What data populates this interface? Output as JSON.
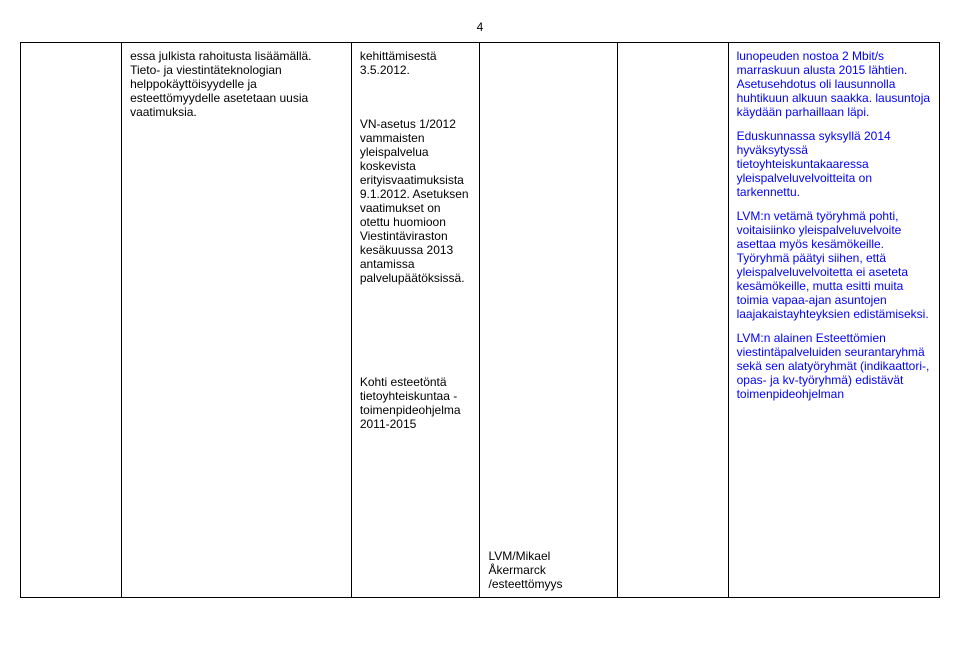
{
  "pageNumber": "4",
  "rows": [
    {
      "col1": "",
      "col2_paragraphs": [
        "essa julkista rahoitusta lisäämällä. Tieto- ja viestintäteknologian helppokäyttöisyydelle ja esteettömyydelle asetetaan uusia vaatimuksia."
      ],
      "col3_paragraphs": [
        "kehittämisestä 3.5.2012.",
        "VN-asetus 1/2012 vammaisten yleispalvelua koskevista erityisvaatimuksista 9.1.2012. Asetuksen vaatimukset on otettu huomioon Viestintäviraston kesäkuussa 2013 antamissa palvelupäätöksissä.",
        "Kohti esteetöntä tietoyhteiskuntaa - toimenpideohjelma 2011-2015"
      ],
      "col4_paragraphs": [
        "",
        "",
        "LVM/Mikael Åkermarck /esteettömyys"
      ],
      "col5": "",
      "col6_paragraphs": [
        "lunopeuden nostoa 2 Mbit/s marraskuun alusta 2015 lähtien. Asetusehdotus oli lausunnolla huhtikuun alkuun saakka. lausuntoja käydään parhaillaan läpi.",
        "Eduskunnassa syksyllä 2014 hyväksytyssä tietoyhteiskuntakaaressa yleispalveluvelvoitteita on tarkennettu.",
        "LVM:n vetämä työryhmä pohti, voitaisiinko yleispalveluvelvoite asettaa myös kesämökeille. Työryhmä päätyi siihen, että yleispalveluvelvoitetta ei aseteta kesämökeille, mutta esitti muita toimia vapaa-ajan asuntojen laajakaistayhteyksien edistämiseksi.",
        "LVM:n alainen Esteettömien viestintäpalveluiden seurantaryhmä sekä sen alatyöryhmät (indikaattori-, opas- ja kv-työryhmä) edistävät toimenpideohjelman"
      ],
      "col6_highlight": true
    }
  ],
  "colors": {
    "highlight": "#0000ff",
    "text": "#000000",
    "border": "#000000",
    "background": "#ffffff"
  }
}
